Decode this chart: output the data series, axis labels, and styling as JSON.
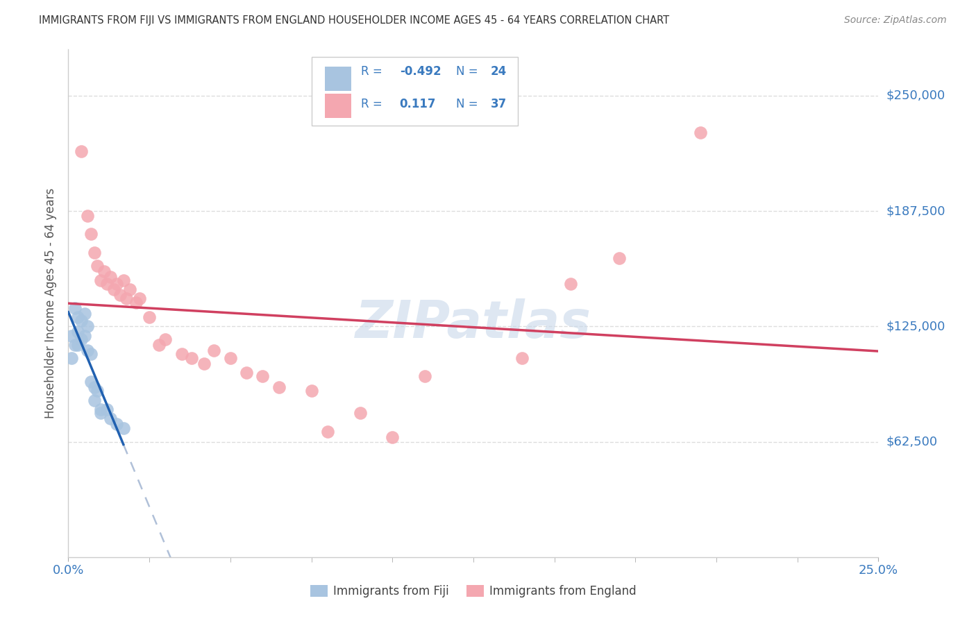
{
  "title": "IMMIGRANTS FROM FIJI VS IMMIGRANTS FROM ENGLAND HOUSEHOLDER INCOME AGES 45 - 64 YEARS CORRELATION CHART",
  "source": "Source: ZipAtlas.com",
  "ylabel": "Householder Income Ages 45 - 64 years",
  "xlim": [
    0.0,
    0.25
  ],
  "ylim": [
    0,
    275000
  ],
  "yticks": [
    0,
    62500,
    125000,
    187500,
    250000
  ],
  "ytick_labels": [
    "",
    "$62,500",
    "$125,000",
    "$187,500",
    "$250,000"
  ],
  "fiji_R": -0.492,
  "fiji_N": 24,
  "england_R": 0.117,
  "england_N": 37,
  "fiji_color": "#a8c4e0",
  "england_color": "#f4a7b0",
  "fiji_line_color": "#2060b0",
  "england_line_color": "#d04060",
  "dashed_line_color": "#b0c0d8",
  "watermark": "ZIPatlas",
  "watermark_color": "#c8d8ea",
  "background_color": "#ffffff",
  "grid_color": "#dddddd",
  "title_color": "#333333",
  "axis_label_color": "#3a7abf",
  "fiji_scatter_x": [
    0.001,
    0.001,
    0.002,
    0.002,
    0.003,
    0.003,
    0.003,
    0.004,
    0.004,
    0.005,
    0.005,
    0.006,
    0.006,
    0.007,
    0.007,
    0.008,
    0.008,
    0.009,
    0.01,
    0.01,
    0.012,
    0.013,
    0.015,
    0.017
  ],
  "fiji_scatter_y": [
    120000,
    108000,
    135000,
    115000,
    130000,
    122000,
    115000,
    128000,
    118000,
    132000,
    120000,
    125000,
    112000,
    110000,
    95000,
    92000,
    85000,
    90000,
    80000,
    78000,
    80000,
    75000,
    72000,
    70000
  ],
  "england_scatter_x": [
    0.004,
    0.006,
    0.007,
    0.008,
    0.009,
    0.01,
    0.011,
    0.012,
    0.013,
    0.014,
    0.015,
    0.016,
    0.017,
    0.018,
    0.019,
    0.021,
    0.022,
    0.025,
    0.028,
    0.03,
    0.035,
    0.038,
    0.042,
    0.045,
    0.05,
    0.055,
    0.06,
    0.065,
    0.075,
    0.08,
    0.09,
    0.1,
    0.11,
    0.14,
    0.155,
    0.17,
    0.195
  ],
  "england_scatter_y": [
    220000,
    185000,
    175000,
    165000,
    158000,
    150000,
    155000,
    148000,
    152000,
    145000,
    148000,
    142000,
    150000,
    140000,
    145000,
    138000,
    140000,
    130000,
    115000,
    118000,
    110000,
    108000,
    105000,
    112000,
    108000,
    100000,
    98000,
    92000,
    90000,
    68000,
    78000,
    65000,
    98000,
    108000,
    148000,
    162000,
    230000
  ],
  "legend_fiji_label": "Immigrants from Fiji",
  "legend_england_label": "Immigrants from England"
}
